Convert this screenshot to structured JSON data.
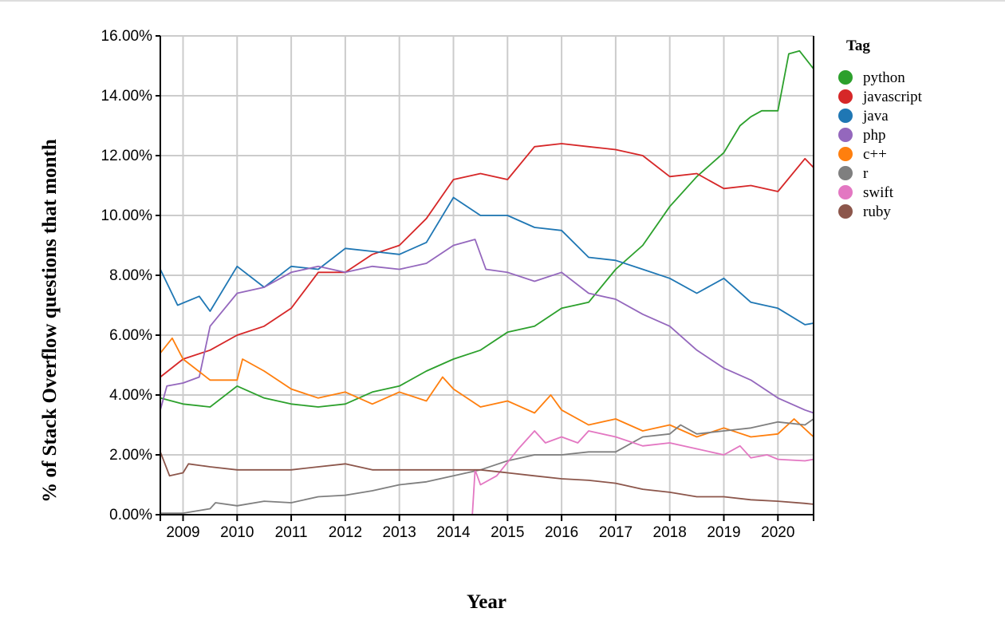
{
  "chart_data": {
    "type": "line",
    "title": "",
    "xlabel": "Year",
    "ylabel": "% of Stack Overflow questions that month",
    "xlim": [
      2008.58,
      2020.66
    ],
    "ylim": [
      0,
      16
    ],
    "x_ticks": [
      "2009",
      "2010",
      "2011",
      "2012",
      "2013",
      "2014",
      "2015",
      "2016",
      "2017",
      "2018",
      "2019",
      "2020"
    ],
    "y_ticks": [
      "0.00%",
      "2.00%",
      "4.00%",
      "6.00%",
      "8.00%",
      "10.00%",
      "12.00%",
      "14.00%",
      "16.00%"
    ],
    "grid": true,
    "legend_title": "Tag",
    "legend_position": "right",
    "series": [
      {
        "name": "python",
        "color": "#2ca02c",
        "points": [
          [
            2008.58,
            3.9
          ],
          [
            2009,
            3.7
          ],
          [
            2009.5,
            3.6
          ],
          [
            2010,
            4.3
          ],
          [
            2010.5,
            3.9
          ],
          [
            2011,
            3.7
          ],
          [
            2011.5,
            3.6
          ],
          [
            2012,
            3.7
          ],
          [
            2012.5,
            4.1
          ],
          [
            2013,
            4.3
          ],
          [
            2013.5,
            4.8
          ],
          [
            2014,
            5.2
          ],
          [
            2014.5,
            5.5
          ],
          [
            2015,
            6.1
          ],
          [
            2015.5,
            6.3
          ],
          [
            2016,
            6.9
          ],
          [
            2016.5,
            7.1
          ],
          [
            2017,
            8.2
          ],
          [
            2017.5,
            9.0
          ],
          [
            2018,
            10.3
          ],
          [
            2018.5,
            11.3
          ],
          [
            2019,
            12.1
          ],
          [
            2019.3,
            13.0
          ],
          [
            2019.5,
            13.3
          ],
          [
            2019.7,
            13.5
          ],
          [
            2020,
            13.5
          ],
          [
            2020.2,
            15.4
          ],
          [
            2020.4,
            15.5
          ],
          [
            2020.66,
            14.9
          ]
        ]
      },
      {
        "name": "javascript",
        "color": "#d62728",
        "points": [
          [
            2008.58,
            4.6
          ],
          [
            2009,
            5.2
          ],
          [
            2009.5,
            5.5
          ],
          [
            2010,
            6.0
          ],
          [
            2010.5,
            6.3
          ],
          [
            2011,
            6.9
          ],
          [
            2011.5,
            8.1
          ],
          [
            2012,
            8.1
          ],
          [
            2012.5,
            8.7
          ],
          [
            2013,
            9.0
          ],
          [
            2013.5,
            9.9
          ],
          [
            2014,
            11.2
          ],
          [
            2014.5,
            11.4
          ],
          [
            2015,
            11.2
          ],
          [
            2015.5,
            12.3
          ],
          [
            2016,
            12.4
          ],
          [
            2016.5,
            12.3
          ],
          [
            2017,
            12.2
          ],
          [
            2017.5,
            12.0
          ],
          [
            2018,
            11.3
          ],
          [
            2018.5,
            11.4
          ],
          [
            2019,
            10.9
          ],
          [
            2019.5,
            11.0
          ],
          [
            2020,
            10.8
          ],
          [
            2020.5,
            11.9
          ],
          [
            2020.66,
            11.6
          ]
        ]
      },
      {
        "name": "java",
        "color": "#1f77b4",
        "points": [
          [
            2008.58,
            8.2
          ],
          [
            2008.9,
            7.0
          ],
          [
            2009.3,
            7.3
          ],
          [
            2009.5,
            6.8
          ],
          [
            2010,
            8.3
          ],
          [
            2010.5,
            7.6
          ],
          [
            2011,
            8.3
          ],
          [
            2011.5,
            8.2
          ],
          [
            2012,
            8.9
          ],
          [
            2012.5,
            8.8
          ],
          [
            2013,
            8.7
          ],
          [
            2013.5,
            9.1
          ],
          [
            2014,
            10.6
          ],
          [
            2014.5,
            10.0
          ],
          [
            2015,
            10.0
          ],
          [
            2015.5,
            9.6
          ],
          [
            2016,
            9.5
          ],
          [
            2016.5,
            8.6
          ],
          [
            2017,
            8.5
          ],
          [
            2017.5,
            8.2
          ],
          [
            2018,
            7.9
          ],
          [
            2018.5,
            7.4
          ],
          [
            2019,
            7.9
          ],
          [
            2019.5,
            7.1
          ],
          [
            2020,
            6.9
          ],
          [
            2020.5,
            6.35
          ],
          [
            2020.66,
            6.4
          ]
        ]
      },
      {
        "name": "php",
        "color": "#9467bd",
        "points": [
          [
            2008.58,
            3.5
          ],
          [
            2008.7,
            4.3
          ],
          [
            2009,
            4.4
          ],
          [
            2009.3,
            4.6
          ],
          [
            2009.5,
            6.3
          ],
          [
            2010,
            7.4
          ],
          [
            2010.5,
            7.6
          ],
          [
            2011,
            8.1
          ],
          [
            2011.5,
            8.3
          ],
          [
            2012,
            8.1
          ],
          [
            2012.5,
            8.3
          ],
          [
            2013,
            8.2
          ],
          [
            2013.5,
            8.4
          ],
          [
            2014,
            9.0
          ],
          [
            2014.4,
            9.2
          ],
          [
            2014.6,
            8.2
          ],
          [
            2015,
            8.1
          ],
          [
            2015.5,
            7.8
          ],
          [
            2016,
            8.1
          ],
          [
            2016.5,
            7.4
          ],
          [
            2017,
            7.2
          ],
          [
            2017.5,
            6.7
          ],
          [
            2018,
            6.3
          ],
          [
            2018.5,
            5.5
          ],
          [
            2019,
            4.9
          ],
          [
            2019.5,
            4.5
          ],
          [
            2020,
            3.9
          ],
          [
            2020.5,
            3.5
          ],
          [
            2020.66,
            3.4
          ]
        ]
      },
      {
        "name": "c++",
        "color": "#ff7f0e",
        "points": [
          [
            2008.58,
            5.4
          ],
          [
            2008.8,
            5.9
          ],
          [
            2009,
            5.2
          ],
          [
            2009.5,
            4.5
          ],
          [
            2010,
            4.5
          ],
          [
            2010.1,
            5.2
          ],
          [
            2010.5,
            4.8
          ],
          [
            2011,
            4.2
          ],
          [
            2011.5,
            3.9
          ],
          [
            2012,
            4.1
          ],
          [
            2012.5,
            3.7
          ],
          [
            2013,
            4.1
          ],
          [
            2013.5,
            3.8
          ],
          [
            2013.8,
            4.6
          ],
          [
            2014,
            4.2
          ],
          [
            2014.5,
            3.6
          ],
          [
            2015,
            3.8
          ],
          [
            2015.5,
            3.4
          ],
          [
            2015.8,
            4.0
          ],
          [
            2016,
            3.5
          ],
          [
            2016.5,
            3.0
          ],
          [
            2017,
            3.2
          ],
          [
            2017.5,
            2.8
          ],
          [
            2018,
            3.0
          ],
          [
            2018.5,
            2.6
          ],
          [
            2019,
            2.9
          ],
          [
            2019.5,
            2.6
          ],
          [
            2020,
            2.7
          ],
          [
            2020.3,
            3.2
          ],
          [
            2020.66,
            2.6
          ]
        ]
      },
      {
        "name": "r",
        "color": "#7f7f7f",
        "points": [
          [
            2008.58,
            0.05
          ],
          [
            2009,
            0.05
          ],
          [
            2009.5,
            0.2
          ],
          [
            2009.6,
            0.4
          ],
          [
            2010,
            0.3
          ],
          [
            2010.5,
            0.45
          ],
          [
            2011,
            0.4
          ],
          [
            2011.5,
            0.6
          ],
          [
            2012,
            0.65
          ],
          [
            2012.5,
            0.8
          ],
          [
            2013,
            1.0
          ],
          [
            2013.5,
            1.1
          ],
          [
            2014,
            1.3
          ],
          [
            2014.5,
            1.5
          ],
          [
            2015,
            1.8
          ],
          [
            2015.5,
            2.0
          ],
          [
            2016,
            2.0
          ],
          [
            2016.5,
            2.1
          ],
          [
            2017,
            2.1
          ],
          [
            2017.5,
            2.6
          ],
          [
            2018,
            2.7
          ],
          [
            2018.2,
            3.0
          ],
          [
            2018.5,
            2.7
          ],
          [
            2019,
            2.8
          ],
          [
            2019.5,
            2.9
          ],
          [
            2020,
            3.1
          ],
          [
            2020.5,
            3.0
          ],
          [
            2020.66,
            3.2
          ]
        ]
      },
      {
        "name": "swift",
        "color": "#e377c2",
        "points": [
          [
            2008.58,
            0
          ],
          [
            2014.35,
            0
          ],
          [
            2014.4,
            1.5
          ],
          [
            2014.5,
            1.0
          ],
          [
            2014.8,
            1.3
          ],
          [
            2015.2,
            2.2
          ],
          [
            2015.5,
            2.8
          ],
          [
            2015.7,
            2.4
          ],
          [
            2016,
            2.6
          ],
          [
            2016.3,
            2.4
          ],
          [
            2016.5,
            2.8
          ],
          [
            2017,
            2.6
          ],
          [
            2017.5,
            2.3
          ],
          [
            2018,
            2.4
          ],
          [
            2018.5,
            2.2
          ],
          [
            2019,
            2.0
          ],
          [
            2019.3,
            2.3
          ],
          [
            2019.5,
            1.9
          ],
          [
            2019.8,
            2.0
          ],
          [
            2020,
            1.85
          ],
          [
            2020.5,
            1.8
          ],
          [
            2020.66,
            1.85
          ]
        ]
      },
      {
        "name": "ruby",
        "color": "#8c564b",
        "points": [
          [
            2008.58,
            2.1
          ],
          [
            2008.75,
            1.3
          ],
          [
            2009,
            1.4
          ],
          [
            2009.1,
            1.7
          ],
          [
            2009.5,
            1.6
          ],
          [
            2010,
            1.5
          ],
          [
            2010.5,
            1.5
          ],
          [
            2011,
            1.5
          ],
          [
            2011.5,
            1.6
          ],
          [
            2012,
            1.7
          ],
          [
            2012.5,
            1.5
          ],
          [
            2013,
            1.5
          ],
          [
            2013.5,
            1.5
          ],
          [
            2014,
            1.5
          ],
          [
            2014.5,
            1.5
          ],
          [
            2015,
            1.4
          ],
          [
            2015.5,
            1.3
          ],
          [
            2016,
            1.2
          ],
          [
            2016.5,
            1.15
          ],
          [
            2017,
            1.05
          ],
          [
            2017.5,
            0.85
          ],
          [
            2018,
            0.75
          ],
          [
            2018.5,
            0.6
          ],
          [
            2019,
            0.6
          ],
          [
            2019.5,
            0.5
          ],
          [
            2020,
            0.45
          ],
          [
            2020.5,
            0.38
          ],
          [
            2020.66,
            0.35
          ]
        ]
      }
    ]
  }
}
